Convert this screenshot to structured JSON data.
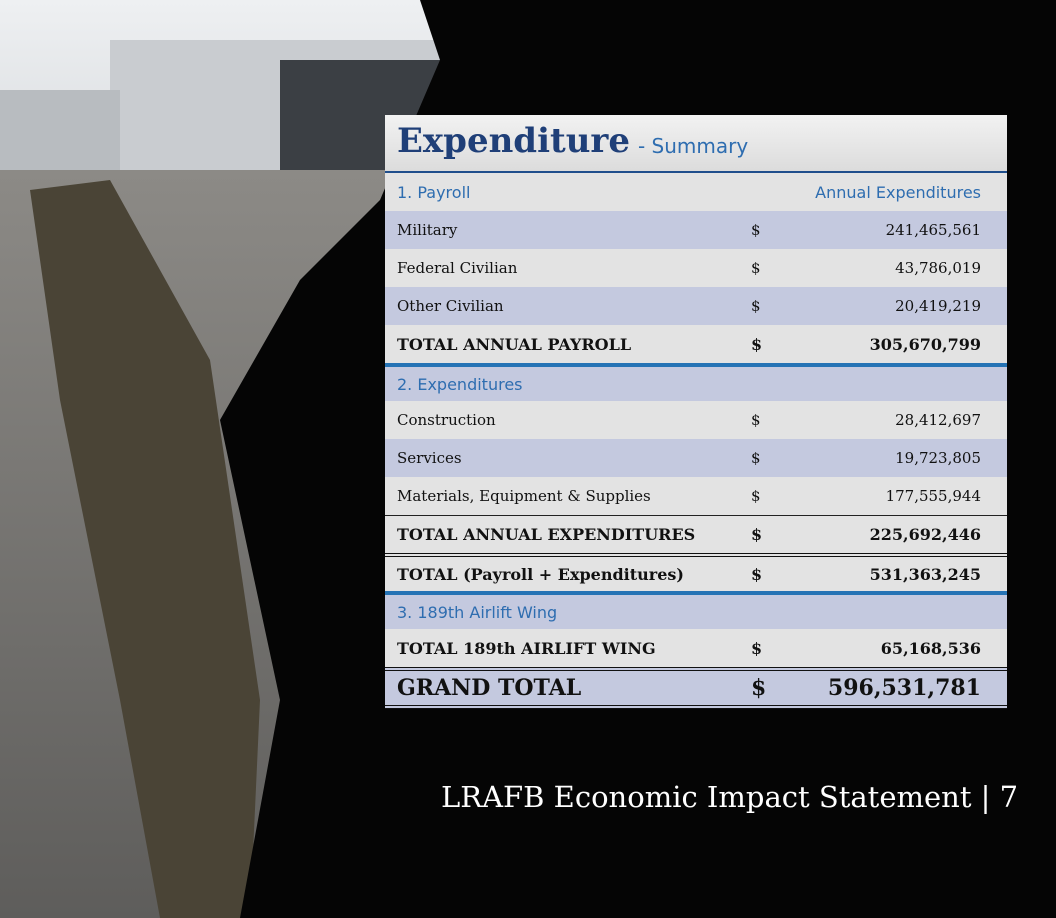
{
  "title": "Expenditure",
  "subtitle": "- Summary",
  "table": {
    "rows": [
      [
        "1. Payroll",
        "Annual Expenditures"
      ],
      [
        "Military",
        "$",
        "241,465,561"
      ],
      [
        "Federal Civilian",
        "$",
        "43,786,019"
      ],
      [
        "Other Civilian",
        "$",
        "20,419,219"
      ],
      [
        "TOTAL ANNUAL PAYROLL",
        "$",
        "305,670,799"
      ],
      [
        "2. Expenditures"
      ],
      [
        "Construction",
        "$",
        "28,412,697"
      ],
      [
        "Services",
        "$",
        "19,723,805"
      ],
      [
        "Materials, Equipment & Supplies",
        "$",
        "177,555,944"
      ],
      [
        "TOTAL ANNUAL EXPENDITURES",
        "$",
        "225,692,446"
      ],
      [
        "TOTAL (Payroll + Expenditures)",
        "$",
        "531,363,245"
      ],
      [
        "3. 189th Airlift Wing"
      ],
      [
        "TOTAL 189th AIRLIFT WING",
        "$",
        "65,168,536"
      ],
      [
        "GRAND TOTAL",
        "$",
        "596,531,781"
      ]
    ]
  },
  "footer": "LRAFB Economic Impact Statement | 7"
}
